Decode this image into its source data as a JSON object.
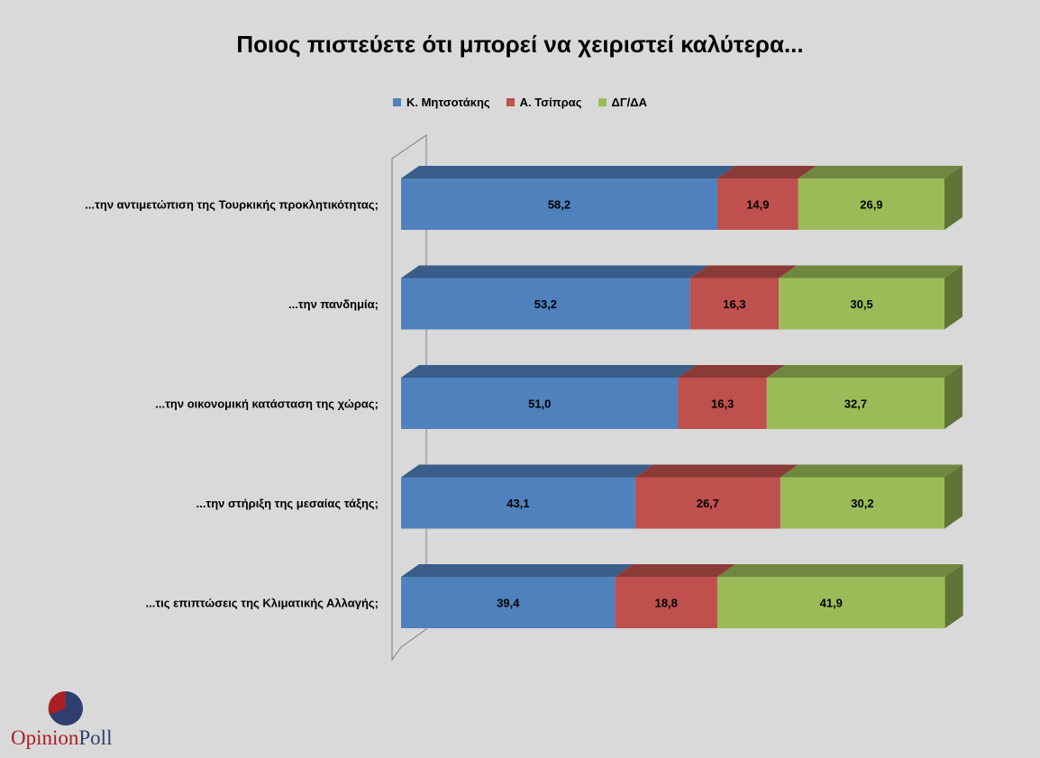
{
  "chart_data": {
    "type": "bar",
    "orientation": "horizontal",
    "stacked": true,
    "style": "3d",
    "title": "Ποιος πιστεύετε ότι μπορεί να χειριστεί καλύτερα...",
    "categories": [
      "...την αντιμετώπιση της Τουρκικής προκλητικότητας;",
      "...την πανδημία;",
      "...την οικονομική κατάσταση της χώρας;",
      "...την στήριξη της μεσαίας τάξης;",
      "...τις επιπτώσεις της Κλιματικής Αλλαγής;"
    ],
    "series": [
      {
        "name": "Κ. Μητσοτάκης",
        "values": [
          58.2,
          53.2,
          51.0,
          43.1,
          39.4
        ],
        "labels": [
          "58,2",
          "53,2",
          "51,0",
          "43,1",
          "39,4"
        ],
        "color": "#4f81bd"
      },
      {
        "name": "Α. Τσίπρας",
        "values": [
          14.9,
          16.3,
          16.3,
          26.7,
          18.8
        ],
        "labels": [
          "14,9",
          "16,3",
          "16,3",
          "26,7",
          "18,8"
        ],
        "color": "#c0504d"
      },
      {
        "name": "ΔΓ/ΔΑ",
        "values": [
          26.9,
          30.5,
          32.7,
          30.2,
          41.9
        ],
        "labels": [
          "26,9",
          "30,5",
          "32,7",
          "30,2",
          "41,9"
        ],
        "color": "#9bbb59"
      }
    ],
    "xlim": [
      0,
      100
    ],
    "legend_position": "top",
    "grid": false
  },
  "logo": {
    "word1": "Opinion",
    "word2": "Poll"
  }
}
